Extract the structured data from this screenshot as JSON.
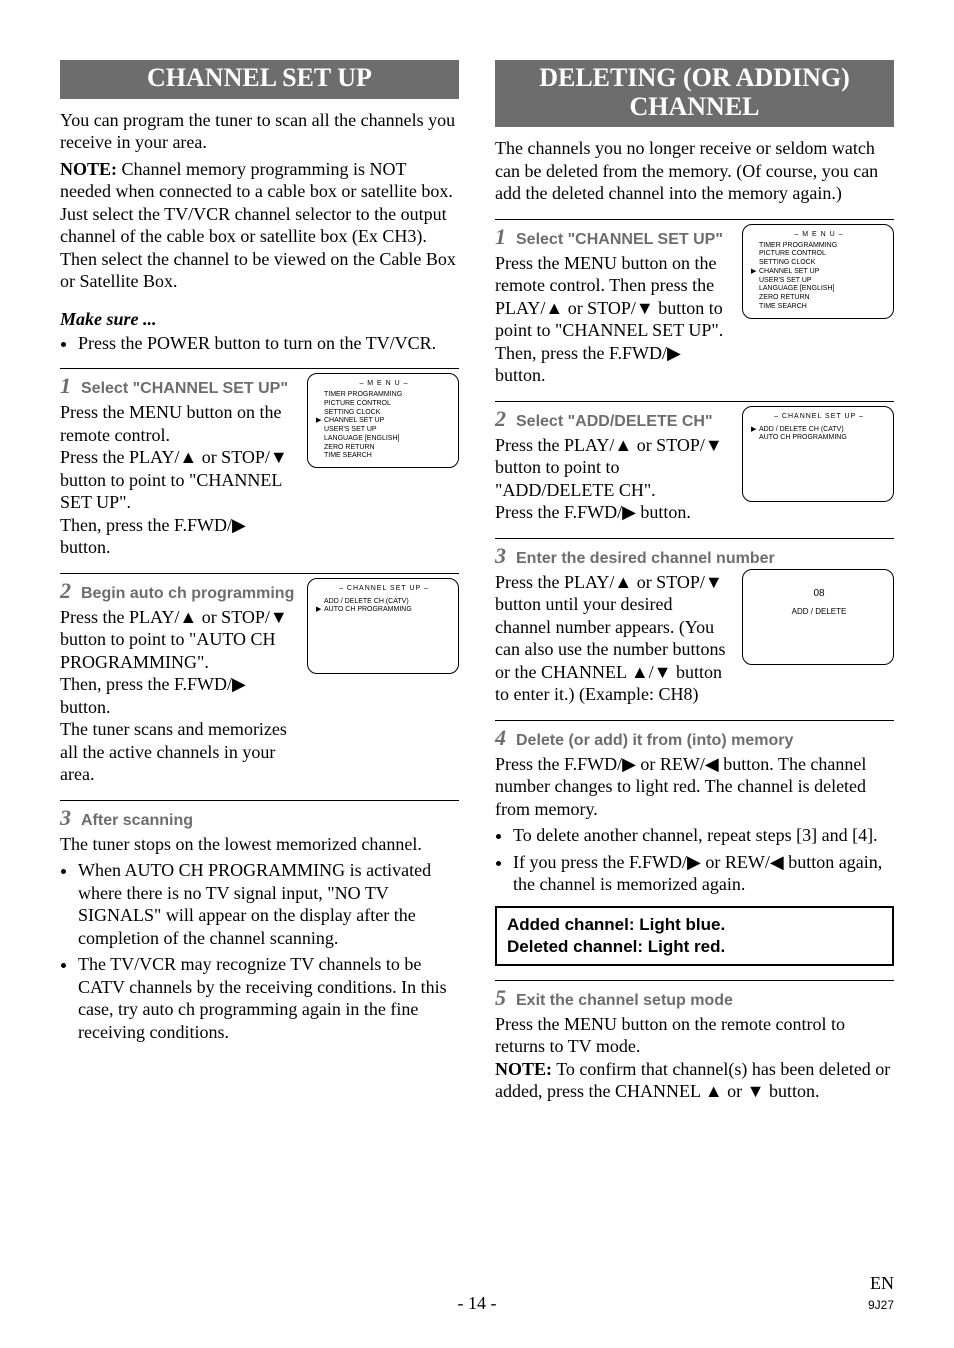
{
  "left": {
    "banner": "CHANNEL SET UP",
    "intro1": "You can program the tuner to scan all the channels you receive in your area.",
    "note_label": "NOTE:",
    "note_text": " Channel memory programming is NOT needed when connected to a cable box or satellite box. Just select the TV/VCR channel selector to the output channel of the cable box or satellite box (Ex CH3). Then select the channel to be viewed on the Cable Box or Satellite Box.",
    "makesure": "Make sure ...",
    "makesure_item": "Press the POWER button to turn on the TV/VCR.",
    "step1": {
      "num": "1",
      "title": "Select \"CHANNEL SET UP\"",
      "body1": "Press the MENU button on the remote control.",
      "body2a": "Press the PLAY/",
      "body2b": " or STOP/",
      "body2c": " button to point to \"CHANNEL SET UP\".",
      "body3a": "Then, press the F.FWD/",
      "body3b": " button."
    },
    "step2": {
      "num": "2",
      "title": "Begin auto ch programming",
      "body1a": "Press the PLAY/",
      "body1b": " or STOP/",
      "body1c": " button to point to \"AUTO CH PROGRAMMING\".",
      "body2a": "Then, press the F.FWD/",
      "body2b": " button.",
      "body3": "The tuner scans and memorizes all the active channels in your area."
    },
    "step3": {
      "num": "3",
      "title": "After scanning",
      "body1": "The tuner stops on the lowest memorized channel.",
      "bul1": "When AUTO CH PROGRAMMING is activated where there is no TV signal input, \"NO TV SIGNALS\" will appear on the display after the completion of the channel scanning.",
      "bul2": "The TV/VCR may recognize TV channels to be CATV channels by the receiving conditions. In this case, try auto ch programming again in the fine receiving conditions."
    },
    "osd_menu": {
      "title": "– M E N U –",
      "items": [
        "TIMER PROGRAMMING",
        "PICTURE CONTROL",
        "SETTING CLOCK",
        "CHANNEL SET UP",
        "USER'S SET UP",
        "LANGUAGE   [ENGLISH]",
        "ZERO RETURN",
        "TIME SEARCH"
      ],
      "pointer_index": 3
    },
    "osd_ch": {
      "title": "– CHANNEL SET UP –",
      "items": [
        "ADD / DELETE CH (CATV)",
        "AUTO CH PROGRAMMING"
      ],
      "pointer_index": 1
    }
  },
  "right": {
    "banner": "DELETING (OR ADDING) CHANNEL",
    "intro": "The channels you no longer receive or seldom watch can be deleted from the memory. (Of course, you can add the deleted channel into the memory again.)",
    "step1": {
      "num": "1",
      "title": "Select \"CHANNEL SET UP\"",
      "body1a": "Press the MENU button on the remote control. Then press the PLAY/",
      "body1b": " or STOP/",
      "body1c": " button to point to \"CHANNEL SET UP\".",
      "body2a": "Then, press the F.FWD/",
      "body2b": " button."
    },
    "step2": {
      "num": "2",
      "title": "Select \"ADD/DELETE CH\"",
      "body1a": "Press the PLAY/",
      "body1b": " or STOP/",
      "body1c": " button to point to \"ADD/DELETE CH\".",
      "body2a": "Press the F.FWD/",
      "body2b": " button."
    },
    "step3": {
      "num": "3",
      "title": "Enter the desired channel number",
      "body1a": "Press the PLAY/",
      "body1b": " or STOP/",
      "body1c": " button until your desired channel number appears. (You can also use the number buttons  or the CHANNEL ",
      "body1d": "/",
      "body1e": " button to enter it.) (Example: CH8)"
    },
    "step4": {
      "num": "4",
      "title": "Delete (or add) it from (into) memory",
      "body1a": "Press the F.FWD/",
      "body1b": " or REW/",
      "body1c": " button. The channel number changes to light red. The channel is deleted from memory.",
      "bul1": "To delete another channel, repeat steps [3] and [4].",
      "bul2a": "If you press the F.FWD/",
      "bul2b": " or REW/",
      "bul2c": " button again, the channel is memorized again.",
      "box1": "Added channel: Light blue.",
      "box2": "Deleted channel: Light red."
    },
    "step5": {
      "num": "5",
      "title": "Exit the channel setup mode",
      "body1": "Press the MENU button on the remote control to returns to TV mode.",
      "note_label": "NOTE:",
      "note_a": " To confirm that channel(s) has been deleted or added, press the CHANNEL ",
      "note_b": " or ",
      "note_c": " button."
    },
    "osd_menu": {
      "title": "– M E N U –",
      "items": [
        "TIMER PROGRAMMING",
        "PICTURE CONTROL",
        "SETTING CLOCK",
        "CHANNEL SET UP",
        "USER'S SET UP",
        "LANGUAGE   [ENGLISH]",
        "ZERO RETURN",
        "TIME SEARCH"
      ],
      "pointer_index": 3
    },
    "osd_ch": {
      "title": "– CHANNEL SET UP –",
      "items": [
        "ADD / DELETE CH (CATV)",
        "AUTO CH PROGRAMMING"
      ],
      "pointer_index": 0
    },
    "osd_num": {
      "value": "08",
      "label": "ADD / DELETE"
    }
  },
  "footer": {
    "page": "- 14 -",
    "en": "EN",
    "code": "9J27"
  },
  "glyphs": {
    "up": "▲",
    "down": "▼",
    "right": "▶",
    "left": "◀",
    "ptr": "▶"
  }
}
